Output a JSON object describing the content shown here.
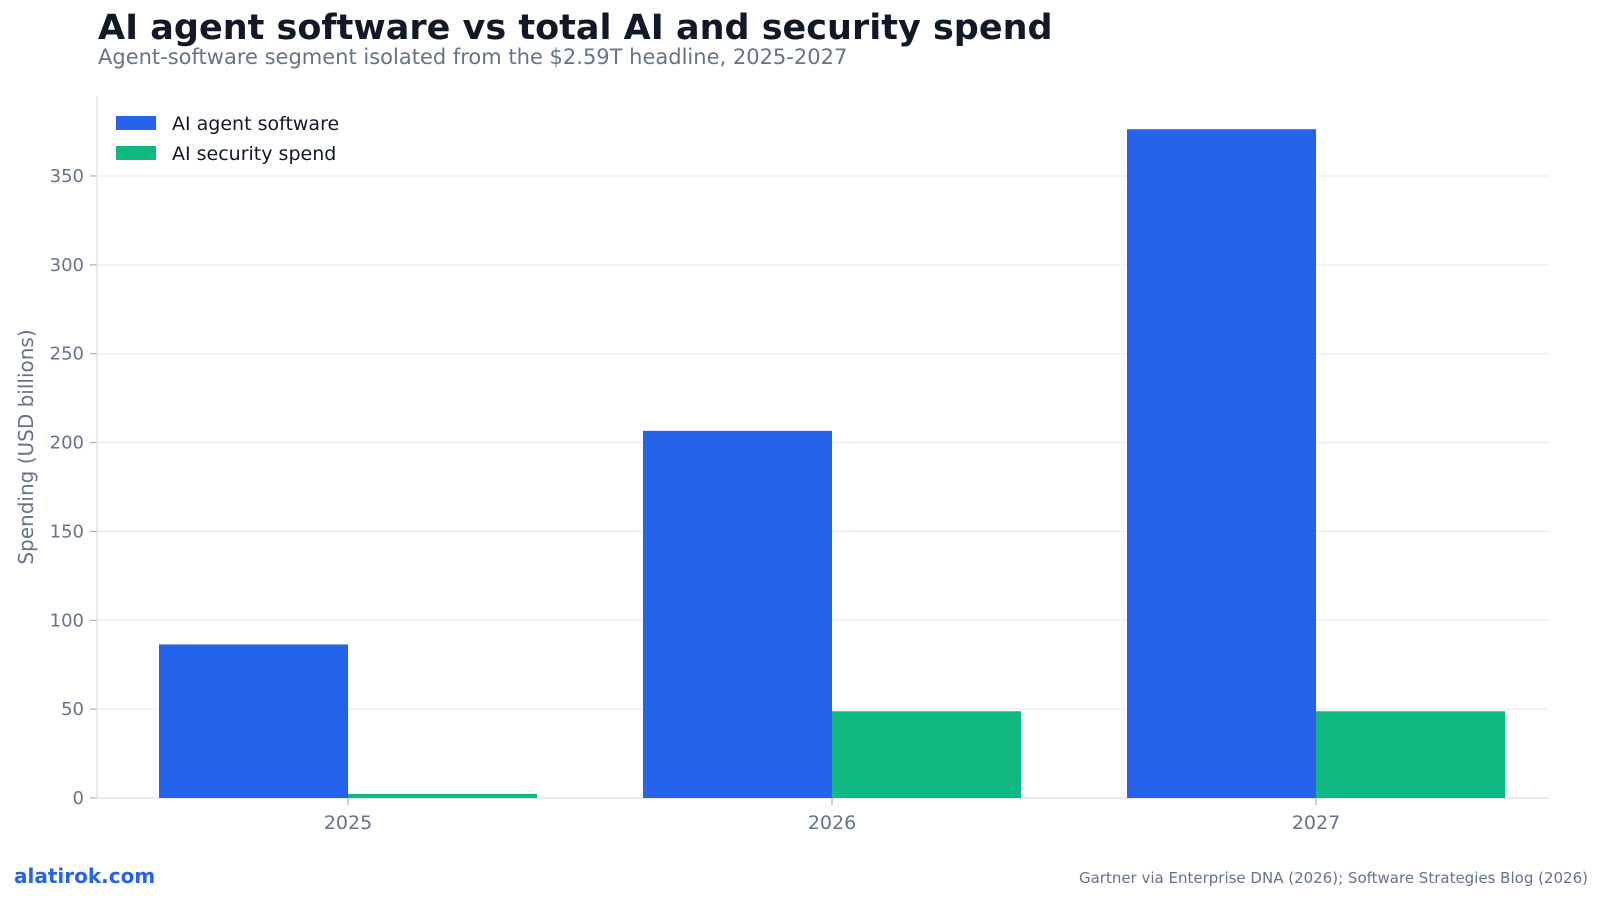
{
  "header": {
    "title": "AI agent software vs total AI and security spend",
    "subtitle": "Agent-software segment isolated from the $2.59T headline, 2025-2027"
  },
  "chart_data": {
    "type": "bar",
    "title": "AI agent software vs total AI and security spend",
    "subtitle": "Agent-software segment isolated from the $2.59T headline, 2025-2027",
    "xlabel": "",
    "ylabel": "Spending (USD billions)",
    "categories": [
      "2025",
      "2026",
      "2027"
    ],
    "series": [
      {
        "name": "AI agent software",
        "values": [
          86.4,
          206.6,
          376.3
        ],
        "color": "#2563eb"
      },
      {
        "name": "AI security spend",
        "values": [
          2.3,
          48.8,
          48.8
        ],
        "color": "#10b981"
      }
    ],
    "ylim": [
      0,
      395
    ],
    "yticks": [
      0,
      50,
      100,
      150,
      200,
      250,
      300,
      350
    ],
    "grid": true,
    "legend_position": "top-left"
  },
  "footer": {
    "brand": "alatirok.com",
    "source": "Gartner via Enterprise DNA (2026); Software Strategies Blog (2026)"
  }
}
